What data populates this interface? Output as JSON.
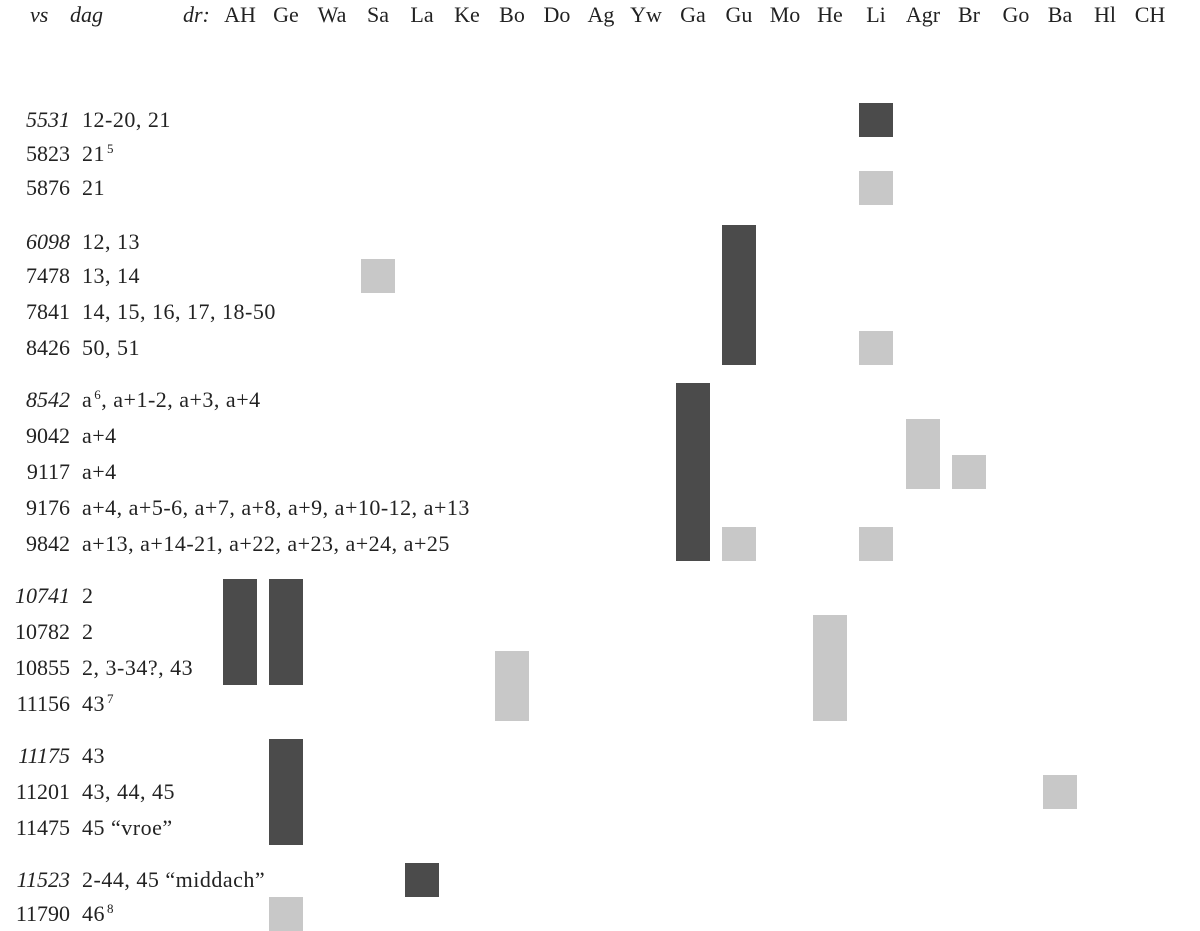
{
  "header": {
    "vs_label": "vs",
    "dag_label": "dag",
    "dr_label": "dr:",
    "columns": [
      "AH",
      "Ge",
      "Wa",
      "Sa",
      "La",
      "Ke",
      "Bo",
      "Do",
      "Ag",
      "Yw",
      "Ga",
      "Gu",
      "Mo",
      "He",
      "Li",
      "Agr",
      "Br",
      "Go",
      "Ba",
      "Hl",
      "CH"
    ]
  },
  "rows": [
    {
      "vs": "5531",
      "dag": "12-20, 21",
      "note": "",
      "italic": true
    },
    {
      "vs": "5823",
      "dag": "21",
      "note": "5",
      "italic": false
    },
    {
      "vs": "5876",
      "dag": "21",
      "note": "",
      "italic": false
    },
    {
      "vs": "6098",
      "dag": "12, 13",
      "note": "",
      "italic": true
    },
    {
      "vs": "7478",
      "dag": "13, 14",
      "note": "",
      "italic": false
    },
    {
      "vs": "7841",
      "dag": "14, 15, 16, 17, 18-50",
      "note": "",
      "italic": false
    },
    {
      "vs": "8426",
      "dag": "50, 51",
      "note": "",
      "italic": false
    },
    {
      "vs": "8542",
      "dag": "a, a+1-2, a+3, a+4",
      "note": "6",
      "italic": true
    },
    {
      "vs": "9042",
      "dag": "a+4",
      "note": "",
      "italic": false
    },
    {
      "vs": "9117",
      "dag": "a+4",
      "note": "",
      "italic": false
    },
    {
      "vs": "9176",
      "dag": "a+4, a+5-6, a+7, a+8, a+9, a+10-12, a+13",
      "note": "",
      "italic": false
    },
    {
      "vs": "9842",
      "dag": "a+13, a+14-21, a+22, a+23, a+24, a+25",
      "note": "",
      "italic": false
    },
    {
      "vs": "10741",
      "dag": "2",
      "note": "",
      "italic": true
    },
    {
      "vs": "10782",
      "dag": "2",
      "note": "",
      "italic": false
    },
    {
      "vs": "10855",
      "dag": "2, 3-34?, 43",
      "note": "",
      "italic": false
    },
    {
      "vs": "11156",
      "dag": "43",
      "note": "7",
      "italic": false
    },
    {
      "vs": "11175",
      "dag": "43",
      "note": "",
      "italic": true
    },
    {
      "vs": "11201",
      "dag": "43, 44, 45",
      "note": "",
      "italic": false
    },
    {
      "vs": "11475",
      "dag": "45 “vroe”",
      "note": "",
      "italic": false
    },
    {
      "vs": "11523",
      "dag": "2-44, 45 “middach”",
      "note": "",
      "italic": true
    },
    {
      "vs": "11790",
      "dag": "46",
      "note": "8",
      "italic": false
    }
  ],
  "bars": [
    {
      "column": "Li",
      "from_row": 0,
      "to_row": 0,
      "shade": "dark"
    },
    {
      "column": "Li",
      "from_row": 2,
      "to_row": 2,
      "shade": "light"
    },
    {
      "column": "Gu",
      "from_row": 3,
      "to_row": 6,
      "shade": "dark"
    },
    {
      "column": "Sa",
      "from_row": 4,
      "to_row": 4,
      "shade": "light"
    },
    {
      "column": "Li",
      "from_row": 6,
      "to_row": 6,
      "shade": "light"
    },
    {
      "column": "Ga",
      "from_row": 7,
      "to_row": 11,
      "shade": "dark"
    },
    {
      "column": "Agr",
      "from_row": 8,
      "to_row": 9,
      "shade": "light"
    },
    {
      "column": "Br",
      "from_row": 9,
      "to_row": 9,
      "shade": "light"
    },
    {
      "column": "Gu",
      "from_row": 11,
      "to_row": 11,
      "shade": "light"
    },
    {
      "column": "Li",
      "from_row": 11,
      "to_row": 11,
      "shade": "light"
    },
    {
      "column": "AH",
      "from_row": 12,
      "to_row": 14,
      "shade": "dark"
    },
    {
      "column": "Ge",
      "from_row": 12,
      "to_row": 14,
      "shade": "dark"
    },
    {
      "column": "He",
      "from_row": 13,
      "to_row": 15,
      "shade": "light"
    },
    {
      "column": "Bo",
      "from_row": 14,
      "to_row": 15,
      "shade": "light"
    },
    {
      "column": "Ge",
      "from_row": 16,
      "to_row": 18,
      "shade": "dark"
    },
    {
      "column": "Ba",
      "from_row": 17,
      "to_row": 17,
      "shade": "light"
    },
    {
      "column": "La",
      "from_row": 19,
      "to_row": 19,
      "shade": "dark"
    },
    {
      "column": "Ge",
      "from_row": 20,
      "to_row": 20,
      "shade": "light"
    }
  ]
}
